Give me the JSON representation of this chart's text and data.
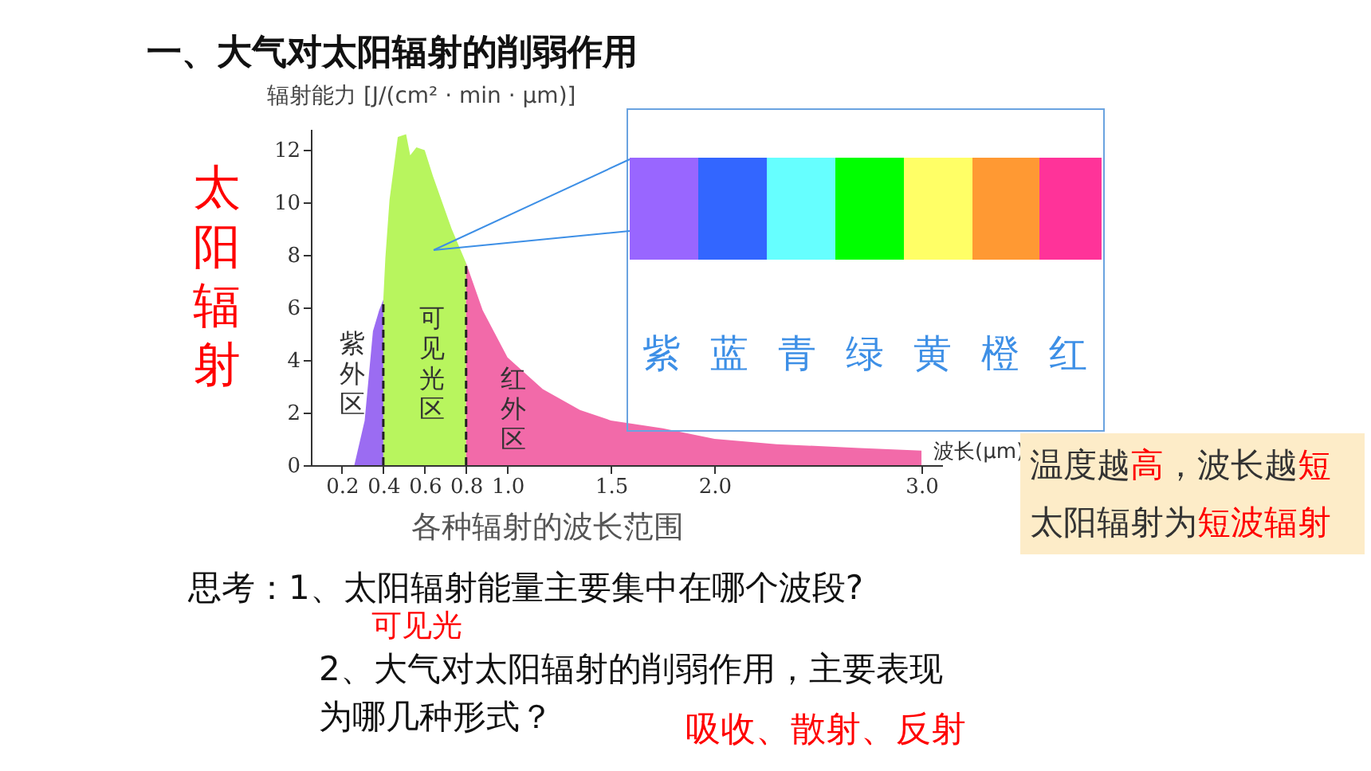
{
  "chart_data": {
    "type": "area",
    "title": "一、大气对太阳辐射的削弱作用",
    "ylabel": "辐射能力 [J/(cm² · min · μm)]",
    "xlabel": "波长(μm)",
    "xlim": [
      0.05,
      3.1
    ],
    "xticks": [
      0.2,
      0.4,
      0.6,
      0.8,
      {
        "value": 1,
        "label": "1.0"
      },
      1.5,
      {
        "value": 2,
        "label": "2.0"
      },
      {
        "value": 3,
        "label": "3.0"
      }
    ],
    "ylim": [
      0,
      12.8
    ],
    "yticks": [
      0,
      2,
      4,
      6,
      8,
      10,
      12
    ],
    "grid": false,
    "series": [
      {
        "color": "#9b6cf2",
        "x": [
          0.26,
          0.31,
          0.35,
          0.38,
          0.4
        ],
        "values": [
          0,
          1.7,
          5.1,
          5.9,
          6.3
        ]
      },
      {
        "color": "#b8f55e",
        "x": [
          0.4,
          0.41,
          0.43,
          0.47,
          0.51,
          0.53,
          0.56,
          0.6,
          0.64,
          0.73,
          0.8
        ],
        "values": [
          6.3,
          7.9,
          10.1,
          12.5,
          12.6,
          11.8,
          12.1,
          12,
          11,
          9,
          7.7
        ]
      },
      {
        "color": "#f26aa9",
        "x": [
          0.8,
          0.88,
          1,
          1.17,
          1.35,
          1.5,
          1.75,
          2,
          2.3,
          2.7,
          3
        ],
        "values": [
          7.7,
          5.9,
          4.1,
          2.9,
          2.1,
          1.7,
          1.4,
          1,
          0.8,
          0.65,
          0.55
        ]
      }
    ],
    "ref_lines": [
      {
        "axis": "x",
        "value": 0.4,
        "line_style": "dashed",
        "color": "#222222"
      },
      {
        "axis": "x",
        "value": 0.8,
        "line_style": "dashed",
        "color": "#222222"
      }
    ],
    "annotations": [
      "太阳辐射",
      "紫外区",
      "可见光区",
      "红外区",
      "各种辐射的波长范围",
      "紫",
      "蓝",
      "青",
      "绿",
      "黄",
      "橙",
      "红",
      "温度越",
      "高",
      "，波长越",
      "短",
      "太阳辐射为",
      "短波辐射",
      "思考：1、太阳辐射能量主要集中在哪个波段?",
      "可见光",
      "2、大气对太阳辐射的削弱作用，主要表现为哪几种形式？",
      "吸收、散射、反射"
    ]
  }
}
